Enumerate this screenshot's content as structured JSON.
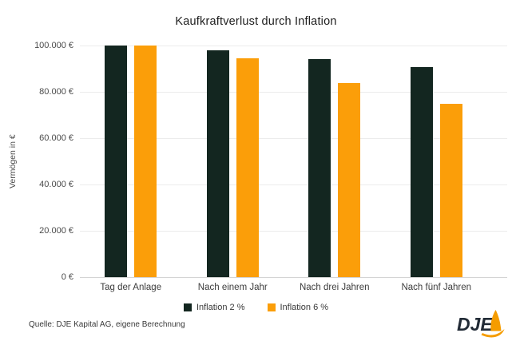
{
  "title": "Kaufkraftverlust durch Inflation",
  "colors": {
    "series_dark": "#132620",
    "series_orange": "#FB9E09",
    "grid": "#ececec",
    "baseline": "#d4d4d4",
    "text": "#3c3c3c",
    "logo_dark": "#222b36",
    "logo_orange": "#F59C00"
  },
  "chart_data": {
    "type": "bar",
    "title": "Kaufkraftverlust durch Inflation",
    "categories": [
      "Tag der Anlage",
      "Nach einem Jahr",
      "Nach drei Jahren",
      "Nach fünf Jahren"
    ],
    "series": [
      {
        "name": "Inflation 2 %",
        "color": "#132620",
        "values": [
          100000,
          98039,
          94232,
          90573
        ]
      },
      {
        "name": "Inflation 6 %",
        "color": "#FB9E09",
        "values": [
          100000,
          94340,
          83962,
          74726
        ]
      }
    ],
    "xlabel": "",
    "ylabel": "Vermögen in €",
    "ylim": [
      0,
      100000
    ],
    "ytick_step": 20000,
    "ytick_labels_bottom_up": [
      "0 €",
      "20.000 €",
      "40.000 €",
      "60.000 €",
      "80.000 €",
      "100.000 €"
    ],
    "grid": true,
    "legend_position": "bottom-center"
  },
  "footer": {
    "source": "Quelle: DJE Kapital AG, eigene Berechnung",
    "logo_text": "DJE"
  }
}
